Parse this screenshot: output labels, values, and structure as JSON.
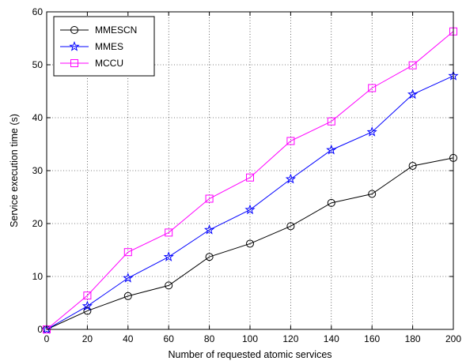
{
  "chart_data": {
    "type": "line",
    "xlabel": "Number of requested atomic services",
    "ylabel": "Service execution time (s)",
    "xlim": [
      0,
      200
    ],
    "ylim": [
      0,
      60
    ],
    "xticks": [
      0,
      20,
      40,
      60,
      80,
      100,
      120,
      140,
      160,
      180,
      200
    ],
    "yticks": [
      0,
      10,
      20,
      30,
      40,
      50,
      60
    ],
    "grid": true,
    "legend_position": "top-left",
    "x": [
      0,
      20,
      40,
      60,
      80,
      100,
      120,
      140,
      160,
      180,
      200
    ],
    "series": [
      {
        "name": "MMESCN",
        "color": "#000000",
        "marker": "circle",
        "values": [
          0,
          3.5,
          6.3,
          8.3,
          13.7,
          16.2,
          19.5,
          23.9,
          25.6,
          30.9,
          32.4
        ]
      },
      {
        "name": "MMES",
        "color": "#0000ff",
        "marker": "star",
        "values": [
          0,
          4.4,
          9.7,
          13.7,
          18.8,
          22.6,
          28.4,
          33.9,
          37.3,
          44.4,
          47.9
        ]
      },
      {
        "name": "MCCU",
        "color": "#ff00ff",
        "marker": "square",
        "values": [
          0,
          6.4,
          14.6,
          18.3,
          24.7,
          28.7,
          35.6,
          39.3,
          45.6,
          49.9,
          56.3
        ]
      }
    ]
  }
}
